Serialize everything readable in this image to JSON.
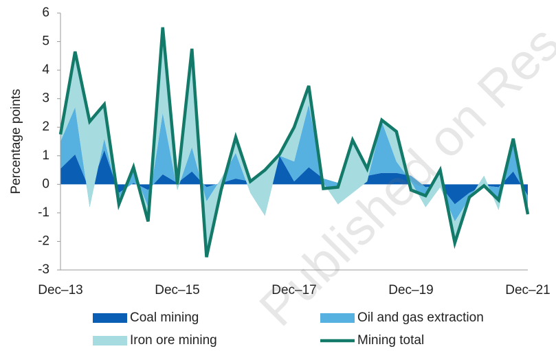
{
  "chart_data": {
    "type": "stacked-area-line",
    "y_label": "Percentage points",
    "watermark": "Published on Res",
    "categories": [
      "Dec–13",
      null,
      null,
      null,
      null,
      null,
      null,
      null,
      "Dec–15",
      null,
      null,
      null,
      null,
      null,
      null,
      null,
      "Dec–17",
      null,
      null,
      null,
      null,
      null,
      null,
      null,
      "Dec–19",
      null,
      null,
      null,
      null,
      null,
      null,
      null,
      "Dec–21"
    ],
    "series": [
      {
        "name": "Coal mining",
        "color": "#0a5fb4",
        "kind": "area",
        "values": [
          0.55,
          1.05,
          -0.2,
          1.2,
          -0.3,
          0.05,
          -0.2,
          0.35,
          0.05,
          0.45,
          -0.1,
          0.05,
          0.2,
          0.1,
          -0.05,
          1.0,
          0.1,
          0.6,
          0.2,
          0.05,
          0.1,
          0.3,
          0.4,
          0.4,
          0.3,
          -0.1,
          -0.05,
          -0.7,
          -0.3,
          -0.05,
          -0.1,
          0.45,
          -0.4
        ]
      },
      {
        "name": "Oil and gas extraction",
        "color": "#56b0e0",
        "kind": "area",
        "values": [
          0.95,
          1.65,
          -0.6,
          0.4,
          -0.2,
          0.45,
          -0.6,
          2.15,
          -0.25,
          0.85,
          -0.5,
          0.15,
          0.9,
          -0.4,
          -1.05,
          0,
          0.7,
          2.2,
          -0.15,
          -0.75,
          -0.4,
          -0.2,
          1.8,
          0.4,
          -0.2,
          -0.7,
          -0.05,
          -0.6,
          -0.2,
          0.35,
          -0.8,
          1.05,
          -0.5
        ]
      },
      {
        "name": "Iron ore mining",
        "color": "#a6dcdf",
        "kind": "area",
        "values": [
          0.25,
          1.95,
          3.0,
          1.2,
          -0.2,
          0.1,
          -0.5,
          3.0,
          0.2,
          3.45,
          -1.95,
          -0.4,
          0.55,
          0.4,
          1.6,
          0.05,
          1.2,
          0.65,
          -0.2,
          0.6,
          1.85,
          0.45,
          0.05,
          1.05,
          -0.3,
          0.4,
          0.6,
          -0.75,
          0.05,
          -0.35,
          0.35,
          0.1,
          -0.15
        ]
      },
      {
        "name": "Mining total",
        "color": "#137a6a",
        "kind": "line",
        "values": [
          1.75,
          4.65,
          2.2,
          2.8,
          -0.7,
          0.6,
          -1.3,
          5.5,
          0,
          4.75,
          -2.55,
          -0.2,
          1.65,
          0.1,
          0.5,
          1.05,
          2.0,
          3.45,
          -0.15,
          -0.1,
          1.55,
          0.55,
          2.25,
          1.85,
          -0.2,
          -0.4,
          0.5,
          -2.05,
          -0.45,
          -0.05,
          -0.55,
          1.6,
          -1.05
        ]
      }
    ],
    "ylim": [
      -3,
      6
    ],
    "yticks": [
      -3,
      -2,
      -1,
      0,
      1,
      2,
      3,
      4,
      5,
      6
    ],
    "legend": "bottom"
  }
}
